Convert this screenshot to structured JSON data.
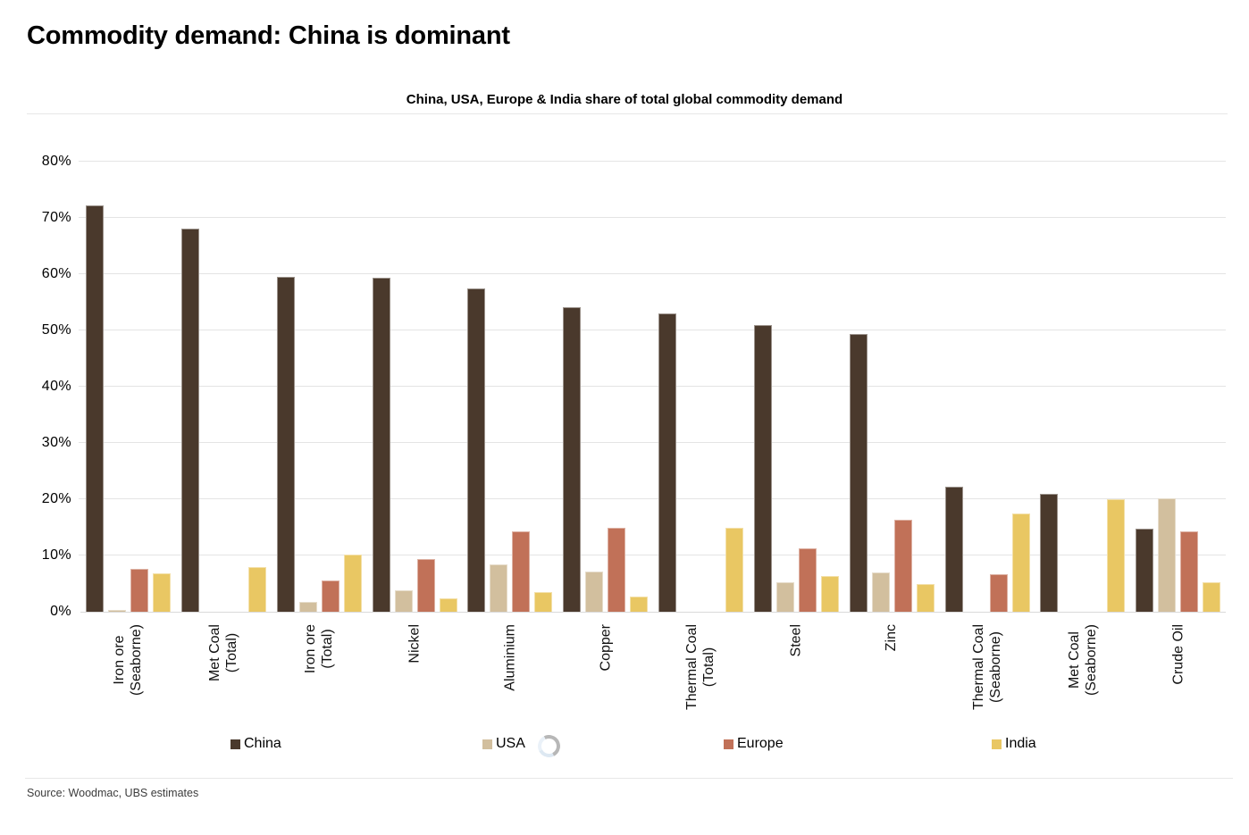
{
  "header": {
    "title": "Commodity demand: China is dominant"
  },
  "chart_data": {
    "type": "bar",
    "title": "China, USA, Europe & India share of total global commodity demand",
    "categories": [
      "Iron ore\n(Seaborne)",
      "Met Coal\n(Total)",
      "Iron ore\n(Total)",
      "Nickel",
      "Aluminium",
      "Copper",
      "Thermal Coal\n(Total)",
      "Steel",
      "Zinc",
      "Thermal Coal\n(Seaborne)",
      "Met Coal\n(Seaborne)",
      "Crude Oil"
    ],
    "series": [
      {
        "name": "China",
        "color": "#4A392C",
        "values": [
          72.3,
          68.1,
          59.5,
          59.3,
          57.5,
          54.1,
          53.0,
          51.0,
          49.4,
          22.3,
          21.0,
          14.8
        ]
      },
      {
        "name": "USA",
        "color": "#D2BF9E",
        "values": [
          0.3,
          0,
          1.8,
          3.8,
          8.4,
          7.1,
          0,
          5.3,
          7.0,
          0,
          0,
          20.2
        ]
      },
      {
        "name": "Europe",
        "color": "#C17158",
        "values": [
          7.7,
          0,
          5.5,
          9.3,
          14.3,
          14.9,
          0,
          11.2,
          16.4,
          6.7,
          0,
          14.3
        ]
      },
      {
        "name": "India",
        "color": "#E9C763",
        "values": [
          6.9,
          8.0,
          10.2,
          2.4,
          3.5,
          2.7,
          15.0,
          6.3,
          4.9,
          17.5,
          20.0,
          5.3
        ]
      }
    ],
    "ylim": [
      0,
      80
    ],
    "yticks": [
      0,
      10,
      20,
      30,
      40,
      50,
      60,
      70,
      80
    ],
    "ytick_suffix": "%",
    "grid": true,
    "legend_position": "bottom",
    "legend_labels": [
      "China",
      "USA",
      "Europe",
      "India"
    ]
  },
  "icons": {
    "legend_status": "loading-spinner"
  },
  "footer": {
    "source": "Source: Woodmac, UBS estimates"
  }
}
